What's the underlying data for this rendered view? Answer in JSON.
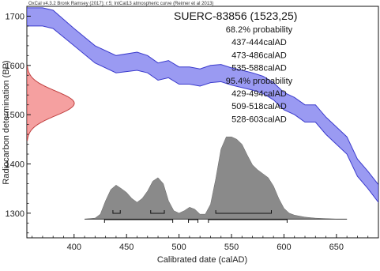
{
  "chart_data": {
    "type": "area",
    "header": "OxCal v4.3.2 Bronk Ramsey (2017); r:5; IntCal13 atmospheric curve (Reimer et al 2013)",
    "title": "SUERC-83856 (1523,25)",
    "xlabel": "Calibrated date (calAD)",
    "ylabel": "Radiocarbon determination (BP)",
    "xlim": [
      355,
      690
    ],
    "ylim": [
      1250,
      1720
    ],
    "x_ticks": [
      400,
      450,
      500,
      550,
      600,
      650
    ],
    "y_ticks": [
      1300,
      1400,
      1500,
      1600,
      1700
    ],
    "annotations": [
      "68.2% probability",
      "437-444calAD",
      "473-486calAD",
      "535-588calAD",
      "95.4% probability",
      "429-494calAD",
      "509-518calAD",
      "528-603calAD"
    ],
    "calibration_curve": {
      "x": [
        355,
        370,
        380,
        400,
        420,
        440,
        460,
        470,
        480,
        490,
        500,
        510,
        520,
        530,
        540,
        550,
        560,
        570,
        580,
        590,
        600,
        610,
        620,
        630,
        640,
        650,
        660,
        670,
        680,
        690
      ],
      "upper": [
        1717,
        1717,
        1712,
        1675,
        1640,
        1620,
        1627,
        1620,
        1605,
        1610,
        1597,
        1597,
        1593,
        1600,
        1602,
        1595,
        1590,
        1585,
        1578,
        1565,
        1545,
        1535,
        1520,
        1520,
        1495,
        1475,
        1455,
        1410,
        1385,
        1358
      ],
      "lower": [
        1680,
        1680,
        1675,
        1640,
        1605,
        1585,
        1590,
        1585,
        1570,
        1575,
        1562,
        1562,
        1558,
        1565,
        1567,
        1560,
        1555,
        1550,
        1543,
        1530,
        1510,
        1500,
        1485,
        1485,
        1460,
        1440,
        1420,
        1375,
        1350,
        1322
      ]
    },
    "radiocarbon_distribution": {
      "mean": 1523,
      "sigma": 25
    },
    "calibrated_distribution": {
      "baseline": 1288,
      "x": [
        410,
        420,
        425,
        430,
        435,
        440,
        445,
        450,
        455,
        460,
        465,
        470,
        475,
        480,
        485,
        490,
        495,
        500,
        505,
        510,
        515,
        520,
        525,
        530,
        535,
        540,
        545,
        550,
        555,
        560,
        565,
        570,
        575,
        580,
        585,
        590,
        595,
        600,
        605,
        610,
        620,
        630,
        640,
        650,
        660
      ],
      "y": [
        1288,
        1290,
        1298,
        1325,
        1348,
        1357,
        1350,
        1342,
        1330,
        1322,
        1330,
        1345,
        1365,
        1372,
        1360,
        1325,
        1305,
        1300,
        1305,
        1312,
        1308,
        1298,
        1298,
        1318,
        1370,
        1430,
        1455,
        1455,
        1450,
        1440,
        1418,
        1398,
        1388,
        1380,
        1372,
        1355,
        1330,
        1310,
        1300,
        1296,
        1292,
        1290,
        1289,
        1288,
        1288
      ]
    },
    "ranges_68": [
      [
        437,
        444
      ],
      [
        473,
        486
      ],
      [
        535,
        588
      ]
    ],
    "ranges_95": [
      [
        429,
        494
      ],
      [
        509,
        518
      ],
      [
        528,
        603
      ]
    ],
    "colors": {
      "curve_fill": "#9a9af2",
      "curve_stroke": "#3a3acc",
      "radiocarbon_fill": "#f5a0a0",
      "radiocarbon_stroke": "#c04040",
      "calibrated_fill": "#8a8a8a"
    }
  }
}
